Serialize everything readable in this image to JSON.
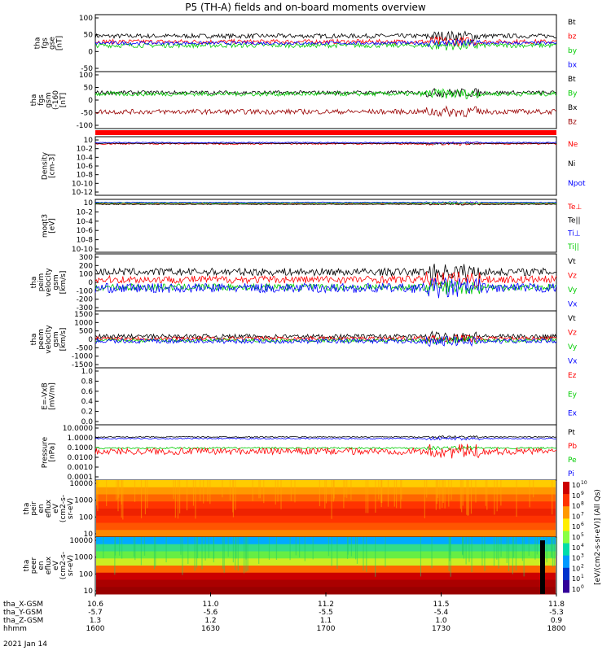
{
  "title": "P5 (TH-A) fields and on-board moments overview",
  "date_label": "2021 Jan 14",
  "colorbar_label": "[eV/(cm2-s-sr-eV)] (All Qs)",
  "colorbar_exponents": [
    "10",
    "9",
    "8",
    "7",
    "6",
    "5",
    "4",
    "3",
    "2",
    "1",
    "0"
  ],
  "colors": {
    "black": "#000000",
    "red": "#ff0000",
    "green": "#00cc00",
    "blue": "#0000ff",
    "darkred": "#990000",
    "navy": "#000080",
    "lime": "#22ff44"
  },
  "ephemeris": {
    "labels": [
      "tha_X-GSM",
      "tha_Y-GSM",
      "tha_Z-GSM",
      "hhmm"
    ],
    "columns": [
      {
        "x": "10.6",
        "X": "-5.7",
        "Y": "1.3",
        "t": "1600"
      },
      {
        "x": "11.0",
        "X": "-5.6",
        "Y": "1.2",
        "t": "1630"
      },
      {
        "x": "11.2",
        "X": "-5.5",
        "Y": "1.1",
        "t": "1700"
      },
      {
        "x": "11.5",
        "X": "-5.4",
        "Y": "1.0",
        "t": "1730"
      },
      {
        "x": "11.8",
        "X": "-5.3",
        "Y": "0.9",
        "t": "1800"
      }
    ]
  },
  "chart_data": [
    {
      "type": "line",
      "name": "fgs-gse",
      "ylabel": [
        "tha",
        "fgs",
        "gse",
        "[nT]"
      ],
      "ylim": [
        -100,
        100
      ],
      "yticks": [
        "100",
        "50",
        "0",
        "-50"
      ],
      "legend": [
        {
          "label": "Bt",
          "color": "#000000"
        },
        {
          "label": "bz",
          "color": "#ff0000"
        },
        {
          "label": "by",
          "color": "#00cc00"
        },
        {
          "label": "bx",
          "color": "#0000ff"
        }
      ],
      "series": [
        {
          "name": "Bt",
          "base": 25,
          "amp": 8
        },
        {
          "name": "bz",
          "base": 5,
          "amp": 8
        },
        {
          "name": "by",
          "base": -8,
          "amp": 8
        },
        {
          "name": "bx",
          "base": 0,
          "amp": 6
        }
      ]
    },
    {
      "type": "line",
      "name": "fgs-gsm",
      "ylabel": [
        "tha",
        "fgs",
        "gsm",
        "(-160",
        "[nT]"
      ],
      "ylim": [
        -130,
        100
      ],
      "yticks": [
        "100",
        "50",
        "0",
        "-50",
        "-100"
      ],
      "legend": [
        {
          "label": "Bt",
          "color": "#000000"
        },
        {
          "label": "By",
          "color": "#00cc00"
        },
        {
          "label": "Bx",
          "color": "#000000"
        },
        {
          "label": "Bz",
          "color": "#990000"
        }
      ],
      "series": [
        {
          "name": "Bt",
          "base": 15,
          "amp": 8
        },
        {
          "name": "By",
          "base": 10,
          "amp": 9
        },
        {
          "name": "Bz",
          "base": -62,
          "amp": 10
        }
      ]
    },
    {
      "type": "line",
      "name": "density",
      "ylabel": [
        "Density",
        "[cm-3]"
      ],
      "log": true,
      "ylim": [
        -12,
        2
      ],
      "yticks": [
        "10",
        "10-2",
        "10-4",
        "10-6",
        "10-8",
        "10-10",
        "10-12"
      ],
      "legend": [
        {
          "label": "Ne",
          "color": "#ff0000"
        },
        {
          "label": "Ni",
          "color": "#000000"
        },
        {
          "label": "Npot",
          "color": "#0000ff"
        }
      ],
      "series": [
        {
          "name": "Ne",
          "base": 0.3,
          "amp": 0.15
        },
        {
          "name": "Ni",
          "base": 0.4,
          "amp": 0.1
        },
        {
          "name": "Npot",
          "base": 0.6,
          "amp": 0.1
        }
      ]
    },
    {
      "type": "line",
      "name": "temperature",
      "ylabel": [
        "moqt3",
        "[eV]"
      ],
      "log": true,
      "ylim": [
        -10,
        4
      ],
      "yticks": [
        "10",
        "10-2",
        "10-4",
        "10-6",
        "10-8",
        "10-10"
      ],
      "legend": [
        {
          "label": "Te⊥",
          "color": "#ff0000"
        },
        {
          "label": "Te||",
          "color": "#000000"
        },
        {
          "label": "Ti⊥",
          "color": "#0000ff"
        },
        {
          "label": "Ti||",
          "color": "#00cc00"
        }
      ],
      "series": [
        {
          "name": "Te⊥",
          "base": 2.8,
          "amp": 0.1
        },
        {
          "name": "Te||",
          "base": 2.7,
          "amp": 0.1
        },
        {
          "name": "Ti⊥",
          "base": 3.2,
          "amp": 0.1
        },
        {
          "name": "Ti||",
          "base": 3.0,
          "amp": 0.1
        }
      ]
    },
    {
      "type": "line",
      "name": "peim-velocity",
      "ylabel": [
        "tha",
        "peim",
        "velocity",
        "gsm",
        "[km/s]"
      ],
      "ylim": [
        -300,
        300
      ],
      "yticks": [
        "300",
        "200",
        "100",
        "0",
        "-100",
        "-200",
        "-300"
      ],
      "legend": [
        {
          "label": "Vt",
          "color": "#000000"
        },
        {
          "label": "Vz",
          "color": "#ff0000"
        },
        {
          "label": "Vy",
          "color": "#00cc00"
        },
        {
          "label": "Vx",
          "color": "#0000ff"
        }
      ],
      "series": [
        {
          "name": "Vt",
          "base": 110,
          "amp": 40
        },
        {
          "name": "Vz",
          "base": 30,
          "amp": 40
        },
        {
          "name": "Vy",
          "base": -50,
          "amp": 35
        },
        {
          "name": "Vx",
          "base": -60,
          "amp": 50
        }
      ]
    },
    {
      "type": "line",
      "name": "peem-velocity",
      "ylabel": [
        "tha",
        "peem",
        "velocity",
        "gsm",
        "[km/s]"
      ],
      "ylim": [
        -1500,
        1500
      ],
      "yticks": [
        "1500",
        "1000",
        "500",
        "0",
        "-500",
        "-1000",
        "-1500"
      ],
      "legend": [
        {
          "label": "Vt",
          "color": "#000000"
        },
        {
          "label": "Vz",
          "color": "#ff0000"
        },
        {
          "label": "Vy",
          "color": "#00cc00"
        },
        {
          "label": "Vx",
          "color": "#0000ff"
        }
      ],
      "series": [
        {
          "name": "Vt",
          "base": 150,
          "amp": 120
        },
        {
          "name": "Vz",
          "base": 50,
          "amp": 100
        },
        {
          "name": "Vy",
          "base": -60,
          "amp": 90
        },
        {
          "name": "Vx",
          "base": -100,
          "amp": 120
        }
      ]
    },
    {
      "type": "line",
      "name": "efield",
      "ylabel": [
        "E=-VxB",
        "[mV/m]"
      ],
      "ylim": [
        0,
        1
      ],
      "yticks": [
        "1.0",
        "0.8",
        "0.6",
        "0.4",
        "0.2",
        "0.0"
      ],
      "legend": [
        {
          "label": "Ez",
          "color": "#ff0000"
        },
        {
          "label": "Ey",
          "color": "#00cc00"
        },
        {
          "label": "Ex",
          "color": "#0000ff"
        }
      ],
      "series": []
    },
    {
      "type": "line",
      "name": "pressure",
      "ylabel": [
        "Pressure",
        "[nPa]"
      ],
      "log": true,
      "ylim": [
        -4,
        1
      ],
      "yticks": [
        "10.0000",
        "1.0000",
        "0.1000",
        "0.0100",
        "0.0010",
        "0.0001"
      ],
      "legend": [
        {
          "label": "Pt",
          "color": "#000000"
        },
        {
          "label": "Pb",
          "color": "#ff0000"
        },
        {
          "label": "Pe",
          "color": "#00cc00"
        },
        {
          "label": "Pi",
          "color": "#0000ff"
        }
      ],
      "series": [
        {
          "name": "Pt",
          "base": -0.1,
          "amp": 0.05
        },
        {
          "name": "Pi",
          "base": -0.25,
          "amp": 0.06
        },
        {
          "name": "Pe",
          "base": -1.1,
          "amp": 0.08
        },
        {
          "name": "Pb",
          "base": -1.4,
          "amp": 0.3
        }
      ]
    },
    {
      "type": "heatmap",
      "name": "peir-eflux",
      "ylabel": [
        "tha",
        "peir",
        "en",
        "eflux",
        "eV",
        "(cm2-s-",
        "sr-eV)"
      ],
      "yticks": [
        "10000",
        "1000",
        "100",
        "10"
      ]
    },
    {
      "type": "heatmap",
      "name": "peer-eflux",
      "ylabel": [
        "tha",
        "peer",
        "en",
        "eflux",
        "eV",
        "(cm2-s-",
        "sr-eV)"
      ],
      "yticks": [
        "10000",
        "1000",
        "100",
        "10"
      ]
    }
  ]
}
